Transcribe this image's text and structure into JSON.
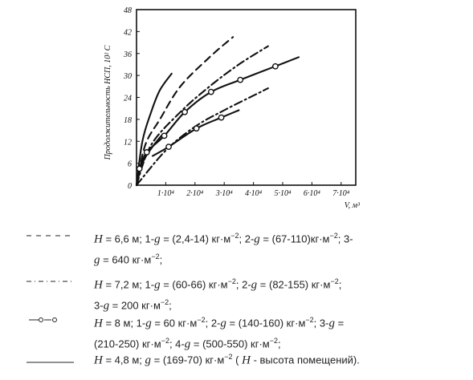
{
  "chart_data": {
    "type": "line",
    "ylabel": "Продолжительность НСП, 10² С",
    "xlabel": "V, м³",
    "y_ticks": [
      "48",
      "42",
      "36",
      "30",
      "24",
      "18",
      "12",
      "6",
      "0"
    ],
    "x_ticks": [
      "1·10⁴",
      "2·10⁴",
      "3·10⁴",
      "4·10⁴",
      "5·10⁴",
      "6·10⁴",
      "7·10⁴"
    ],
    "xlim": [
      0,
      75000
    ],
    "ylim": [
      0,
      48
    ],
    "series": [
      {
        "style": "solid",
        "x": [
          0,
          2000,
          5000,
          8000,
          12000
        ],
        "y": [
          0,
          12,
          20,
          26,
          30.5
        ]
      },
      {
        "style": "dashed",
        "x": [
          0,
          3000,
          8000,
          15000,
          25000,
          33000
        ],
        "y": [
          0,
          11,
          18,
          27,
          35,
          40.5
        ]
      },
      {
        "style": "dash-dot",
        "x": [
          0,
          5000,
          15000,
          25000,
          35000,
          45000
        ],
        "y": [
          0,
          11,
          20,
          27,
          33,
          38
        ]
      },
      {
        "style": "dash-dot",
        "x": [
          0,
          10000,
          20000,
          30000,
          40000,
          45000
        ],
        "y": [
          0,
          9.5,
          16,
          20.5,
          24.5,
          26.5
        ]
      },
      {
        "style": "solid-circle",
        "x": [
          0,
          1000,
          3500,
          9500,
          16500,
          25500,
          35500,
          47500,
          55500
        ],
        "y": [
          0,
          4.5,
          9,
          13.5,
          20,
          25.5,
          28.8,
          32.5,
          35
        ],
        "markers": [
          [
            1000,
            4.5
          ],
          [
            3500,
            9
          ],
          [
            9500,
            13.5
          ],
          [
            16500,
            20
          ],
          [
            25500,
            25.5
          ],
          [
            35500,
            28.8
          ],
          [
            47500,
            32.5
          ]
        ]
      },
      {
        "style": "solid-circle",
        "x": [
          5500,
          11000,
          20500,
          29000,
          35000
        ],
        "y": [
          8,
          10.5,
          15.5,
          18.5,
          20.5
        ],
        "markers": [
          [
            11000,
            10.5
          ],
          [
            20500,
            15.5
          ],
          [
            29000,
            18.5
          ]
        ]
      },
      {
        "style": "solid-circle",
        "x": [
          0,
          2000,
          5000,
          9000
        ],
        "y": [
          0,
          6,
          10,
          14
        ]
      }
    ]
  },
  "legend": [
    {
      "symbol": "dashed",
      "parts": [
        {
          "t": "H",
          "i": true
        },
        {
          "t": " = 6,6 м; 1-",
          "i": false
        },
        {
          "t": "g",
          "i": true
        },
        {
          "t": " = (2,4-14) кг·м",
          "i": false
        },
        {
          "t": "−2",
          "s": true
        },
        {
          "t": ";  2-",
          "i": false
        },
        {
          "t": "g",
          "i": true
        },
        {
          "t": " = (67-110)кг·м",
          "i": false
        },
        {
          "t": "−2",
          "s": true
        },
        {
          "t": ";  3-",
          "i": false
        }
      ],
      "parts2": [
        {
          "t": "g",
          "i": true
        },
        {
          "t": " = 640 кг·м",
          "i": false
        },
        {
          "t": "−2",
          "s": true
        },
        {
          "t": ";",
          "i": false
        }
      ]
    },
    {
      "symbol": "dash-dot",
      "parts": [
        {
          "t": "H",
          "i": true
        },
        {
          "t": " = 7,2 м;  1-",
          "i": false
        },
        {
          "t": "g",
          "i": true
        },
        {
          "t": " =  (60-66) кг·м",
          "i": false
        },
        {
          "t": "−2",
          "s": true
        },
        {
          "t": ";  2-",
          "i": false
        },
        {
          "t": "g",
          "i": true
        },
        {
          "t": " = (82-155) кг·м",
          "i": false
        },
        {
          "t": "−2",
          "s": true
        },
        {
          "t": ";",
          "i": false
        }
      ],
      "parts2": [
        {
          "t": "3-",
          "i": false
        },
        {
          "t": "g",
          "i": true
        },
        {
          "t": " = 200 кг·м",
          "i": false
        },
        {
          "t": "−2",
          "s": true
        },
        {
          "t": ";",
          "i": false
        }
      ]
    },
    {
      "symbol": "circle",
      "parts": [
        {
          "t": "H",
          "i": true
        },
        {
          "t": " = 8 м;  1-",
          "i": false
        },
        {
          "t": "g",
          "i": true
        },
        {
          "t": " = 60 кг·м",
          "i": false
        },
        {
          "t": "−2",
          "s": true
        },
        {
          "t": ";  2-",
          "i": false
        },
        {
          "t": "g",
          "i": true
        },
        {
          "t": " = (140-160) кг·м",
          "i": false
        },
        {
          "t": "−2",
          "s": true
        },
        {
          "t": ";  3-",
          "i": false
        },
        {
          "t": "g",
          "i": true
        },
        {
          "t": " =",
          "i": false
        }
      ],
      "parts2": [
        {
          "t": "(210-250) кг·м",
          "i": false
        },
        {
          "t": "−2",
          "s": true
        },
        {
          "t": "; 4-",
          "i": false
        },
        {
          "t": "g",
          "i": true
        },
        {
          "t": " = (500-550) кг·м",
          "i": false
        },
        {
          "t": "−2",
          "s": true
        },
        {
          "t": ";",
          "i": false
        }
      ]
    },
    {
      "symbol": "solid",
      "parts": [
        {
          "t": "H",
          "i": true
        },
        {
          "t": " = 4,8 м;  ",
          "i": false
        },
        {
          "t": "g",
          "i": true
        },
        {
          "t": " = (169-70) кг·м",
          "i": false
        },
        {
          "t": "−2",
          "s": true
        },
        {
          "t": " (  ",
          "i": false
        },
        {
          "t": "H",
          "i": true
        },
        {
          "t": " - высота помещений).",
          "i": false
        }
      ],
      "parts2": []
    }
  ]
}
